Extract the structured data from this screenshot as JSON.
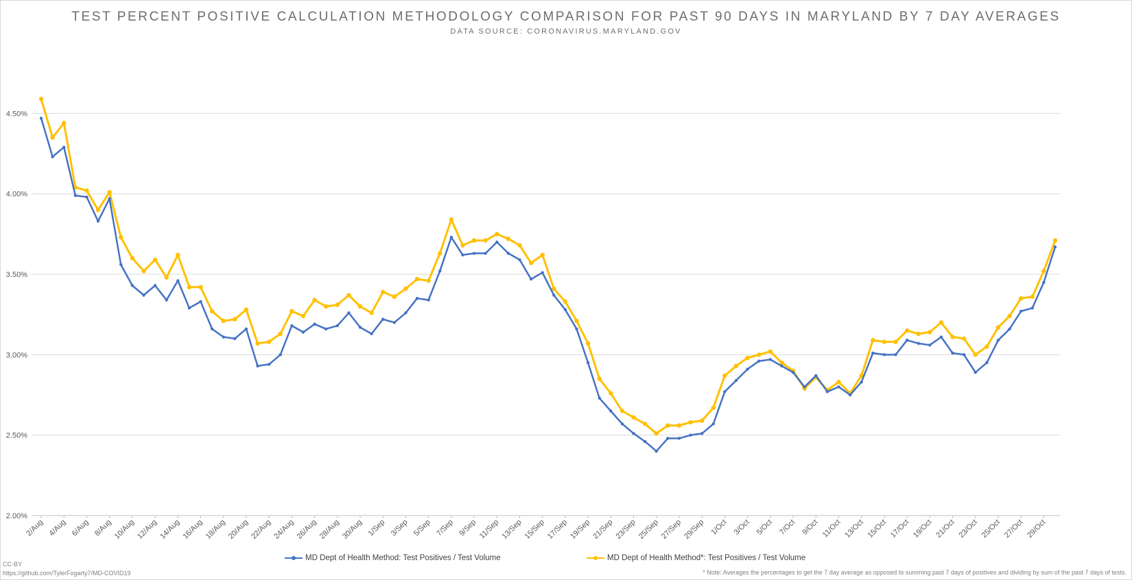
{
  "chart_data": {
    "type": "line",
    "title": "TEST PERCENT POSITIVE CALCULATION METHODOLOGY COMPARISON FOR PAST 90 DAYS IN MARYLAND BY 7 DAY AVERAGES",
    "subtitle": "DATA SOURCE: CORONAVIRUS.MARYLAND.GOV",
    "ylim": [
      2.0,
      4.8
    ],
    "y_ticks": [
      "2.00%",
      "2.50%",
      "3.00%",
      "3.50%",
      "4.00%",
      "4.50%"
    ],
    "y_tick_values": [
      2.0,
      2.5,
      3.0,
      3.5,
      4.0,
      4.5
    ],
    "grid": true,
    "legend_position": "bottom",
    "x_labels": [
      "2/Aug",
      "4/Aug",
      "6/Aug",
      "8/Aug",
      "10/Aug",
      "12/Aug",
      "14/Aug",
      "16/Aug",
      "18/Aug",
      "20/Aug",
      "22/Aug",
      "24/Aug",
      "26/Aug",
      "28/Aug",
      "30/Aug",
      "1/Sep",
      "3/Sep",
      "5/Sep",
      "7/Sep",
      "9/Sep",
      "11/Sep",
      "13/Sep",
      "15/Sep",
      "17/Sep",
      "19/Sep",
      "21/Sep",
      "23/Sep",
      "25/Sep",
      "27/Sep",
      "29/Sep",
      "1/Oct",
      "3/Oct",
      "5/Oct",
      "7/Oct",
      "9/Oct",
      "11/Oct",
      "13/Oct",
      "15/Oct",
      "17/Oct",
      "19/Oct",
      "21/Oct",
      "23/Oct",
      "25/Oct",
      "27/Oct",
      "29/Oct"
    ],
    "series": [
      {
        "name": "MD Dept of Health Method: Test Positives / Test Volume",
        "color": "#4472c4",
        "values": [
          4.47,
          4.23,
          4.29,
          3.99,
          3.98,
          3.83,
          3.97,
          3.56,
          3.43,
          3.37,
          3.43,
          3.34,
          3.46,
          3.29,
          3.33,
          3.16,
          3.11,
          3.1,
          3.16,
          2.93,
          2.94,
          3.0,
          3.18,
          3.14,
          3.19,
          3.16,
          3.18,
          3.26,
          3.17,
          3.13,
          3.22,
          3.2,
          3.26,
          3.35,
          3.34,
          3.52,
          3.73,
          3.62,
          3.63,
          3.63,
          3.7,
          3.63,
          3.59,
          3.47,
          3.51,
          3.37,
          3.28,
          3.16,
          2.95,
          2.73,
          2.65,
          2.57,
          2.51,
          2.46,
          2.4,
          2.48,
          2.48,
          2.5,
          2.51,
          2.57,
          2.77,
          2.84,
          2.91,
          2.96,
          2.97,
          2.93,
          2.89,
          2.8,
          2.87,
          2.77,
          2.8,
          2.75,
          2.83,
          3.01,
          3.0,
          3.0,
          3.09,
          3.07,
          3.06,
          3.11,
          3.01,
          3.0,
          2.89,
          2.95,
          3.09,
          3.16,
          3.27,
          3.29,
          3.45,
          3.67
        ]
      },
      {
        "name": "MD Dept of Health Method*: Test Positives / Test Volume",
        "color": "#ffc000",
        "values": [
          4.59,
          4.35,
          4.44,
          4.04,
          4.02,
          3.9,
          4.01,
          3.73,
          3.6,
          3.52,
          3.59,
          3.48,
          3.62,
          3.42,
          3.42,
          3.27,
          3.21,
          3.22,
          3.28,
          3.07,
          3.08,
          3.13,
          3.27,
          3.24,
          3.34,
          3.3,
          3.31,
          3.37,
          3.3,
          3.26,
          3.39,
          3.36,
          3.41,
          3.47,
          3.46,
          3.63,
          3.84,
          3.68,
          3.71,
          3.71,
          3.75,
          3.72,
          3.68,
          3.57,
          3.62,
          3.41,
          3.33,
          3.21,
          3.07,
          2.85,
          2.76,
          2.65,
          2.61,
          2.57,
          2.51,
          2.56,
          2.56,
          2.58,
          2.59,
          2.67,
          2.87,
          2.93,
          2.98,
          3.0,
          3.02,
          2.95,
          2.9,
          2.79,
          2.86,
          2.78,
          2.83,
          2.76,
          2.87,
          3.09,
          3.08,
          3.08,
          3.15,
          3.13,
          3.14,
          3.2,
          3.11,
          3.1,
          3.0,
          3.05,
          3.17,
          3.24,
          3.35,
          3.36,
          3.52,
          3.71
        ]
      }
    ]
  },
  "legend": {
    "item1": "MD Dept of Health Method: Test Positives / Test Volume",
    "item2": "MD Dept of Health Method*: Test Positives / Test Volume"
  },
  "footer": {
    "license": "CC-BY",
    "source_url": "https://github.com/TylerFogarty7/MD-COVID19",
    "note": "* Note: Averages the percentages to get the 7 day average as opposed to summing past 7 days of positives and dividing by sum of the past 7 days of tests."
  },
  "colors": {
    "series1": "#4472c4",
    "series2": "#ffc000",
    "grid": "#d9d9d9"
  }
}
